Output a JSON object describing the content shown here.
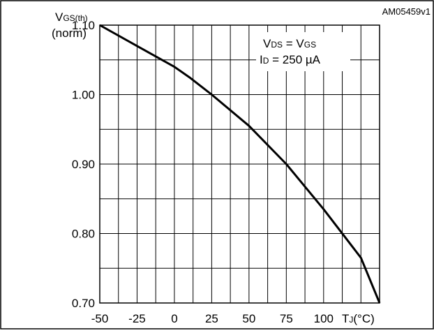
{
  "chart_data": {
    "type": "line",
    "figure_id": "AM05459v1",
    "ylabel_main": "V",
    "ylabel_sub": "GS(th)",
    "ylabel_line2": "(norm)",
    "xlabel_main": "T",
    "xlabel_sub": "J",
    "xlabel_unit": "(°C)",
    "xlim": [
      -50,
      137.5
    ],
    "ylim": [
      0.7,
      1.1
    ],
    "x_ticks": [
      -50,
      -25,
      0,
      25,
      50,
      75,
      100
    ],
    "x_tick_labels": [
      "-50",
      "-25",
      "0",
      "25",
      "50",
      "75",
      "100"
    ],
    "y_ticks": [
      0.7,
      0.8,
      0.9,
      1.0,
      1.1
    ],
    "y_tick_labels": [
      "0.70",
      "0.80",
      "0.90",
      "1.00",
      "1.10"
    ],
    "grid": true,
    "annotation": {
      "line1": {
        "a": "V",
        "a_sub": "DS",
        "op": " = ",
        "b": "V",
        "b_sub": "GS"
      },
      "line2": {
        "a": "I",
        "a_sub": "D",
        "rest": " = 250 µA"
      }
    },
    "series": [
      {
        "x": [
          -50,
          -25,
          0,
          10,
          25,
          50,
          75,
          100,
          125,
          137.5
        ],
        "y": [
          1.1,
          1.07,
          1.04,
          1.025,
          1.0,
          0.955,
          0.9,
          0.835,
          0.765,
          0.7
        ]
      }
    ]
  }
}
